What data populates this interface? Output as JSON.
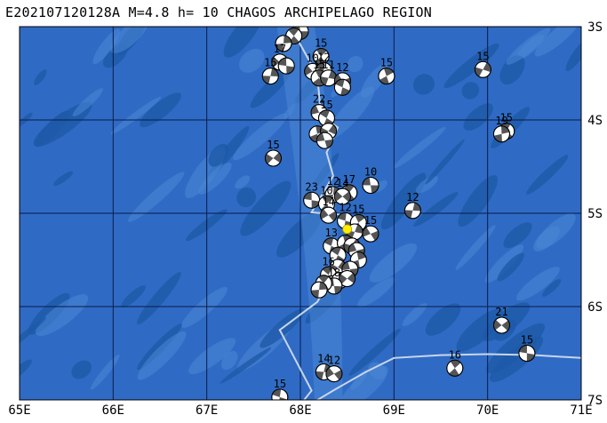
{
  "title": "E202107120128A M=4.8 h= 10 CHAGOS ARCHIPELAGO REGION",
  "colors": {
    "ocean": "#2f6bc4",
    "ocean_dark": "#1e5aa8",
    "ocean_light": "#4a86d6",
    "grid": "#0a1a4a",
    "ridge": "#c8d6ec",
    "epicenter": "#ffee00",
    "mech_dark": "#555555",
    "mech_light": "#ffffff"
  },
  "map": {
    "lon_range": [
      65,
      71
    ],
    "lat_range": [
      -7,
      -3
    ],
    "x_ticks": [
      "65E",
      "66E",
      "67E",
      "68E",
      "69E",
      "70E",
      "71E"
    ],
    "y_ticks": [
      "3S",
      "4S",
      "5S",
      "6S",
      "7S"
    ]
  },
  "epicenter": {
    "lon": 68.5,
    "lat": -5.17
  },
  "mechanisms": [
    {
      "lon": 68.0,
      "lat": -3.05,
      "label": "13"
    },
    {
      "lon": 67.93,
      "lat": -3.1,
      "label": "12"
    },
    {
      "lon": 67.82,
      "lat": -3.18,
      "label": ""
    },
    {
      "lon": 67.78,
      "lat": -3.38,
      "label": "17"
    },
    {
      "lon": 67.85,
      "lat": -3.42,
      "label": ""
    },
    {
      "lon": 68.22,
      "lat": -3.32,
      "label": "15"
    },
    {
      "lon": 67.68,
      "lat": -3.53,
      "label": "15"
    },
    {
      "lon": 68.13,
      "lat": -3.48,
      "label": "10"
    },
    {
      "lon": 68.25,
      "lat": -3.47,
      "label": "12"
    },
    {
      "lon": 68.2,
      "lat": -3.55,
      "label": "15"
    },
    {
      "lon": 68.3,
      "lat": -3.55,
      "label": "11"
    },
    {
      "lon": 68.45,
      "lat": -3.58,
      "label": "12"
    },
    {
      "lon": 68.45,
      "lat": -3.65,
      "label": ""
    },
    {
      "lon": 68.92,
      "lat": -3.53,
      "label": "15"
    },
    {
      "lon": 69.95,
      "lat": -3.46,
      "label": "15"
    },
    {
      "lon": 68.2,
      "lat": -3.92,
      "label": "22"
    },
    {
      "lon": 68.28,
      "lat": -3.98,
      "label": "15"
    },
    {
      "lon": 68.18,
      "lat": -4.15,
      "label": ""
    },
    {
      "lon": 68.3,
      "lat": -4.12,
      "label": ""
    },
    {
      "lon": 68.26,
      "lat": -4.22,
      "label": ""
    },
    {
      "lon": 70.2,
      "lat": -4.12,
      "label": "15"
    },
    {
      "lon": 70.15,
      "lat": -4.15,
      "label": "19"
    },
    {
      "lon": 67.71,
      "lat": -4.41,
      "label": "15"
    },
    {
      "lon": 68.75,
      "lat": -4.7,
      "label": "10"
    },
    {
      "lon": 68.52,
      "lat": -4.78,
      "label": "17"
    },
    {
      "lon": 68.35,
      "lat": -4.8,
      "label": "12"
    },
    {
      "lon": 68.45,
      "lat": -4.82,
      "label": "14"
    },
    {
      "lon": 68.12,
      "lat": -4.86,
      "label": "23"
    },
    {
      "lon": 68.28,
      "lat": -4.9,
      "label": "10"
    },
    {
      "lon": 69.2,
      "lat": -4.97,
      "label": "12"
    },
    {
      "lon": 68.3,
      "lat": -5.02,
      "label": "14"
    },
    {
      "lon": 68.48,
      "lat": -5.08,
      "label": "12"
    },
    {
      "lon": 68.62,
      "lat": -5.1,
      "label": "15"
    },
    {
      "lon": 68.58,
      "lat": -5.2,
      "label": ""
    },
    {
      "lon": 68.75,
      "lat": -5.22,
      "label": "15"
    },
    {
      "lon": 68.33,
      "lat": -5.35,
      "label": "13"
    },
    {
      "lon": 68.48,
      "lat": -5.32,
      "label": ""
    },
    {
      "lon": 68.55,
      "lat": -5.35,
      "label": ""
    },
    {
      "lon": 68.6,
      "lat": -5.4,
      "label": ""
    },
    {
      "lon": 68.4,
      "lat": -5.45,
      "label": ""
    },
    {
      "lon": 68.62,
      "lat": -5.5,
      "label": ""
    },
    {
      "lon": 68.4,
      "lat": -5.58,
      "label": ""
    },
    {
      "lon": 68.53,
      "lat": -5.6,
      "label": ""
    },
    {
      "lon": 68.3,
      "lat": -5.66,
      "label": "16"
    },
    {
      "lon": 68.42,
      "lat": -5.72,
      "label": ""
    },
    {
      "lon": 68.5,
      "lat": -5.7,
      "label": ""
    },
    {
      "lon": 68.36,
      "lat": -5.78,
      "label": "18"
    },
    {
      "lon": 68.25,
      "lat": -5.75,
      "label": ""
    },
    {
      "lon": 68.2,
      "lat": -5.82,
      "label": ""
    },
    {
      "lon": 70.15,
      "lat": -6.2,
      "label": "21"
    },
    {
      "lon": 70.42,
      "lat": -6.5,
      "label": "15"
    },
    {
      "lon": 69.65,
      "lat": -6.66,
      "label": "16"
    },
    {
      "lon": 68.25,
      "lat": -6.7,
      "label": "14"
    },
    {
      "lon": 68.36,
      "lat": -6.72,
      "label": "12"
    },
    {
      "lon": 67.78,
      "lat": -6.97,
      "label": "15"
    }
  ]
}
